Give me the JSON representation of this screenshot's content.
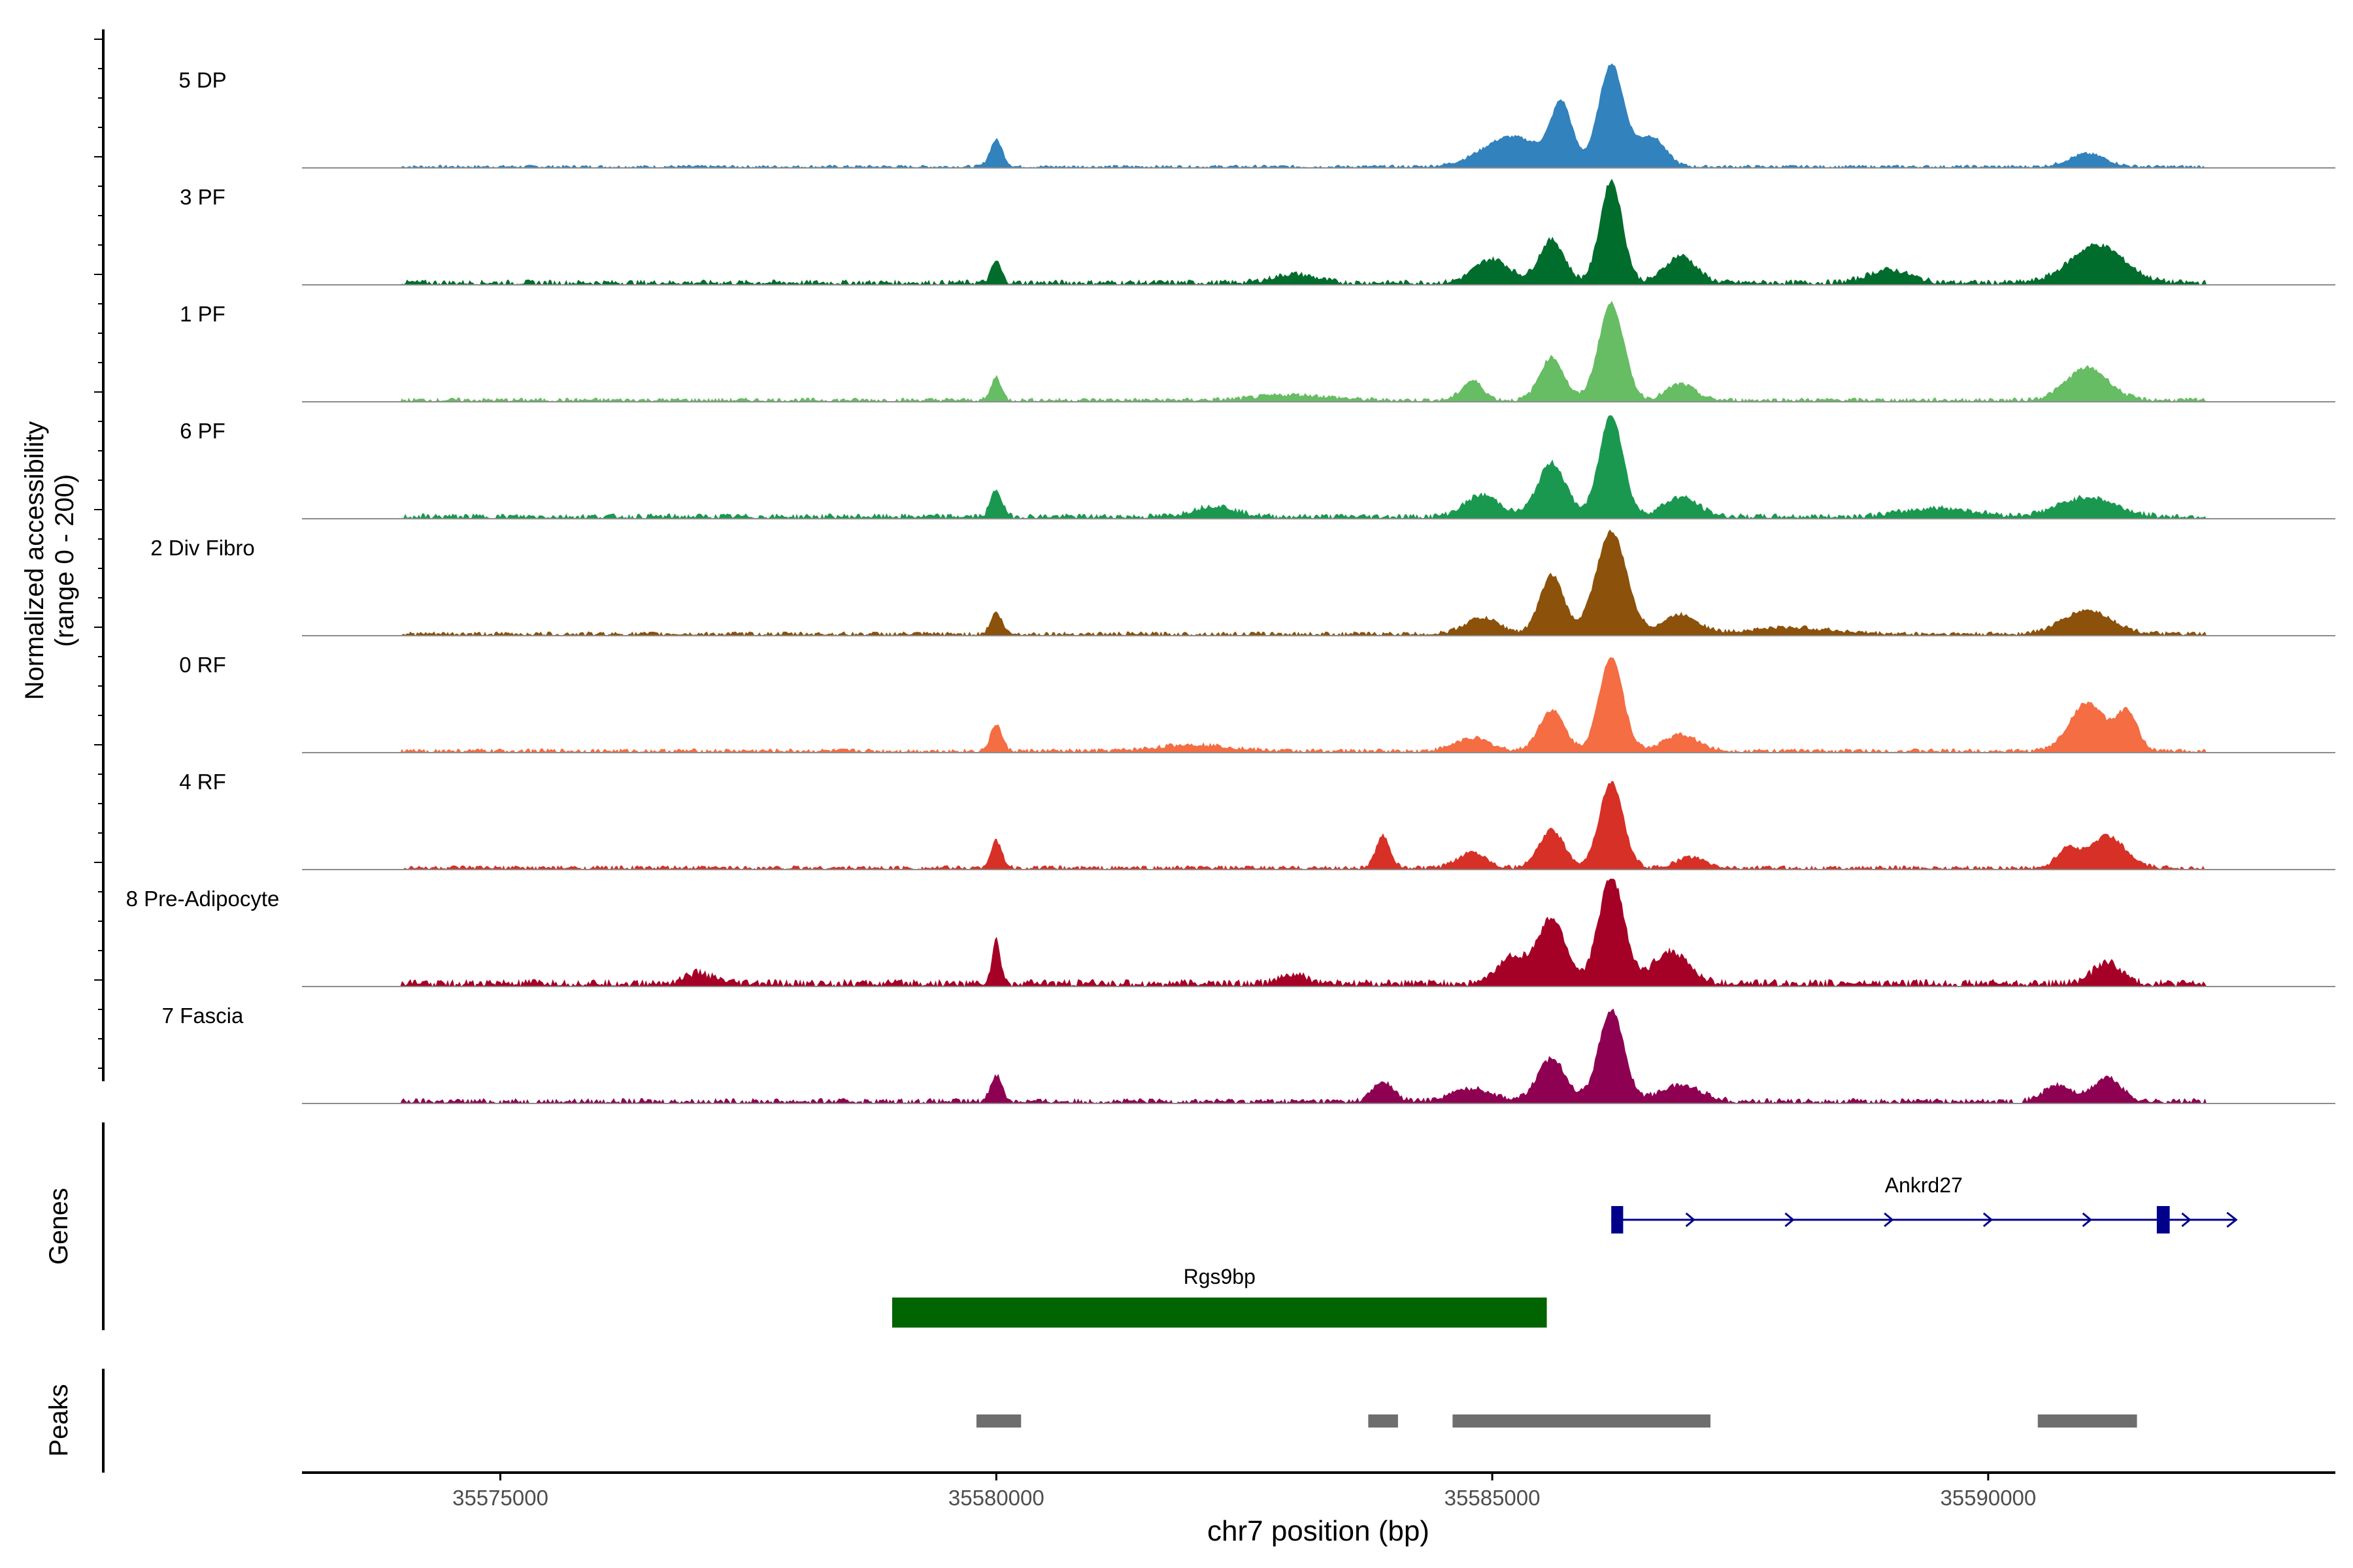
{
  "chart_data": {
    "type": "coverage-track",
    "region": {
      "chromosome": "chr7",
      "start": 35573000,
      "end": 35593500
    },
    "x_axis": {
      "label": "chr7 position (bp)",
      "ticks": [
        35575000,
        35580000,
        35585000,
        35590000
      ],
      "tick_labels": [
        "35575000",
        "35580000",
        "35585000",
        "35590000"
      ]
    },
    "y_axis": {
      "label_line1": "Normalized accessibility",
      "label_line2": "(range 0 - 200)",
      "range": [
        0,
        200
      ]
    },
    "tracks": [
      {
        "name": "5 DP",
        "color": "#3182BD",
        "peaks": [
          [
            35580000,
            25,
            90
          ],
          [
            35586200,
            95,
            180
          ],
          [
            35585700,
            55,
            150
          ],
          [
            35585200,
            28,
            420
          ],
          [
            35586600,
            28,
            200
          ],
          [
            35591000,
            12,
            260
          ]
        ],
        "noise": 3
      },
      {
        "name": "3 PF",
        "color": "#006D2C",
        "peaks": [
          [
            35580000,
            20,
            70
          ],
          [
            35586200,
            95,
            160
          ],
          [
            35585600,
            40,
            180
          ],
          [
            35585000,
            22,
            250
          ],
          [
            35586900,
            25,
            220
          ],
          [
            35591100,
            35,
            380
          ],
          [
            35589000,
            12,
            300
          ],
          [
            35583000,
            8,
            300
          ]
        ],
        "noise": 5
      },
      {
        "name": "1 PF",
        "color": "#66BD63",
        "peaks": [
          [
            35580000,
            22,
            70
          ],
          [
            35586200,
            90,
            180
          ],
          [
            35585600,
            40,
            170
          ],
          [
            35584800,
            18,
            150
          ],
          [
            35586900,
            15,
            200
          ],
          [
            35591000,
            30,
            300
          ],
          [
            35583000,
            5,
            500
          ]
        ],
        "noise": 4
      },
      {
        "name": "6 PF",
        "color": "#1A9850",
        "peaks": [
          [
            35580000,
            25,
            80
          ],
          [
            35586200,
            95,
            170
          ],
          [
            35585600,
            50,
            200
          ],
          [
            35584900,
            20,
            250
          ],
          [
            35586900,
            18,
            250
          ],
          [
            35591000,
            18,
            400
          ],
          [
            35582200,
            10,
            300
          ],
          [
            35589500,
            8,
            500
          ]
        ],
        "noise": 5
      },
      {
        "name": "2 Div Fibro",
        "color": "#8C510A",
        "peaks": [
          [
            35580000,
            20,
            80
          ],
          [
            35586200,
            95,
            220
          ],
          [
            35585600,
            55,
            170
          ],
          [
            35584900,
            15,
            250
          ],
          [
            35586900,
            18,
            250
          ],
          [
            35591000,
            22,
            350
          ],
          [
            35588000,
            6,
            600
          ]
        ],
        "noise": 4
      },
      {
        "name": "0 RF",
        "color": "#F46D43",
        "peaks": [
          [
            35580000,
            25,
            80
          ],
          [
            35586200,
            88,
            170
          ],
          [
            35585600,
            38,
            180
          ],
          [
            35584800,
            12,
            250
          ],
          [
            35586900,
            15,
            250
          ],
          [
            35591000,
            45,
            250
          ],
          [
            35591400,
            35,
            150
          ],
          [
            35582000,
            6,
            500
          ]
        ],
        "noise": 4
      },
      {
        "name": "4 RF",
        "color": "#D73027",
        "peaks": [
          [
            35580000,
            25,
            80
          ],
          [
            35586200,
            80,
            170
          ],
          [
            35585600,
            35,
            180
          ],
          [
            35583900,
            30,
            100
          ],
          [
            35584800,
            15,
            200
          ],
          [
            35587000,
            10,
            200
          ],
          [
            35591200,
            30,
            250
          ],
          [
            35590800,
            18,
            150
          ]
        ],
        "noise": 4
      },
      {
        "name": "8 Pre-Adipocyte",
        "color": "#A50026",
        "peaks": [
          [
            35580000,
            40,
            60
          ],
          [
            35586200,
            100,
            180
          ],
          [
            35585600,
            60,
            200
          ],
          [
            35585200,
            25,
            200
          ],
          [
            35586800,
            30,
            250
          ],
          [
            35591200,
            20,
            200
          ],
          [
            35577000,
            10,
            200
          ],
          [
            35583000,
            8,
            200
          ]
        ],
        "noise": 7
      },
      {
        "name": "7 Fascia",
        "color": "#8E0152",
        "peaks": [
          [
            35580000,
            25,
            80
          ],
          [
            35586200,
            85,
            180
          ],
          [
            35585600,
            40,
            200
          ],
          [
            35583900,
            18,
            150
          ],
          [
            35584800,
            12,
            300
          ],
          [
            35586900,
            15,
            300
          ],
          [
            35591200,
            22,
            200
          ],
          [
            35590700,
            15,
            200
          ]
        ],
        "noise": 5
      }
    ],
    "genes": {
      "label": "Genes",
      "items": [
        {
          "name": "Ankrd27",
          "start": 35586200,
          "end": 35592500,
          "strand": "+",
          "color": "#00008B",
          "exons": [
            [
              35586200,
              35586320
            ],
            [
              35591700,
              35591830
            ]
          ]
        },
        {
          "name": "Rgs9bp",
          "start": 35578950,
          "end": 35585550,
          "color": "#006400"
        }
      ]
    },
    "peaks_track": {
      "label": "Peaks",
      "color": "#6E6E6E",
      "regions": [
        [
          35579800,
          35580250
        ],
        [
          35583750,
          35584050
        ],
        [
          35584600,
          35587200
        ],
        [
          35590500,
          35591500
        ]
      ]
    }
  }
}
